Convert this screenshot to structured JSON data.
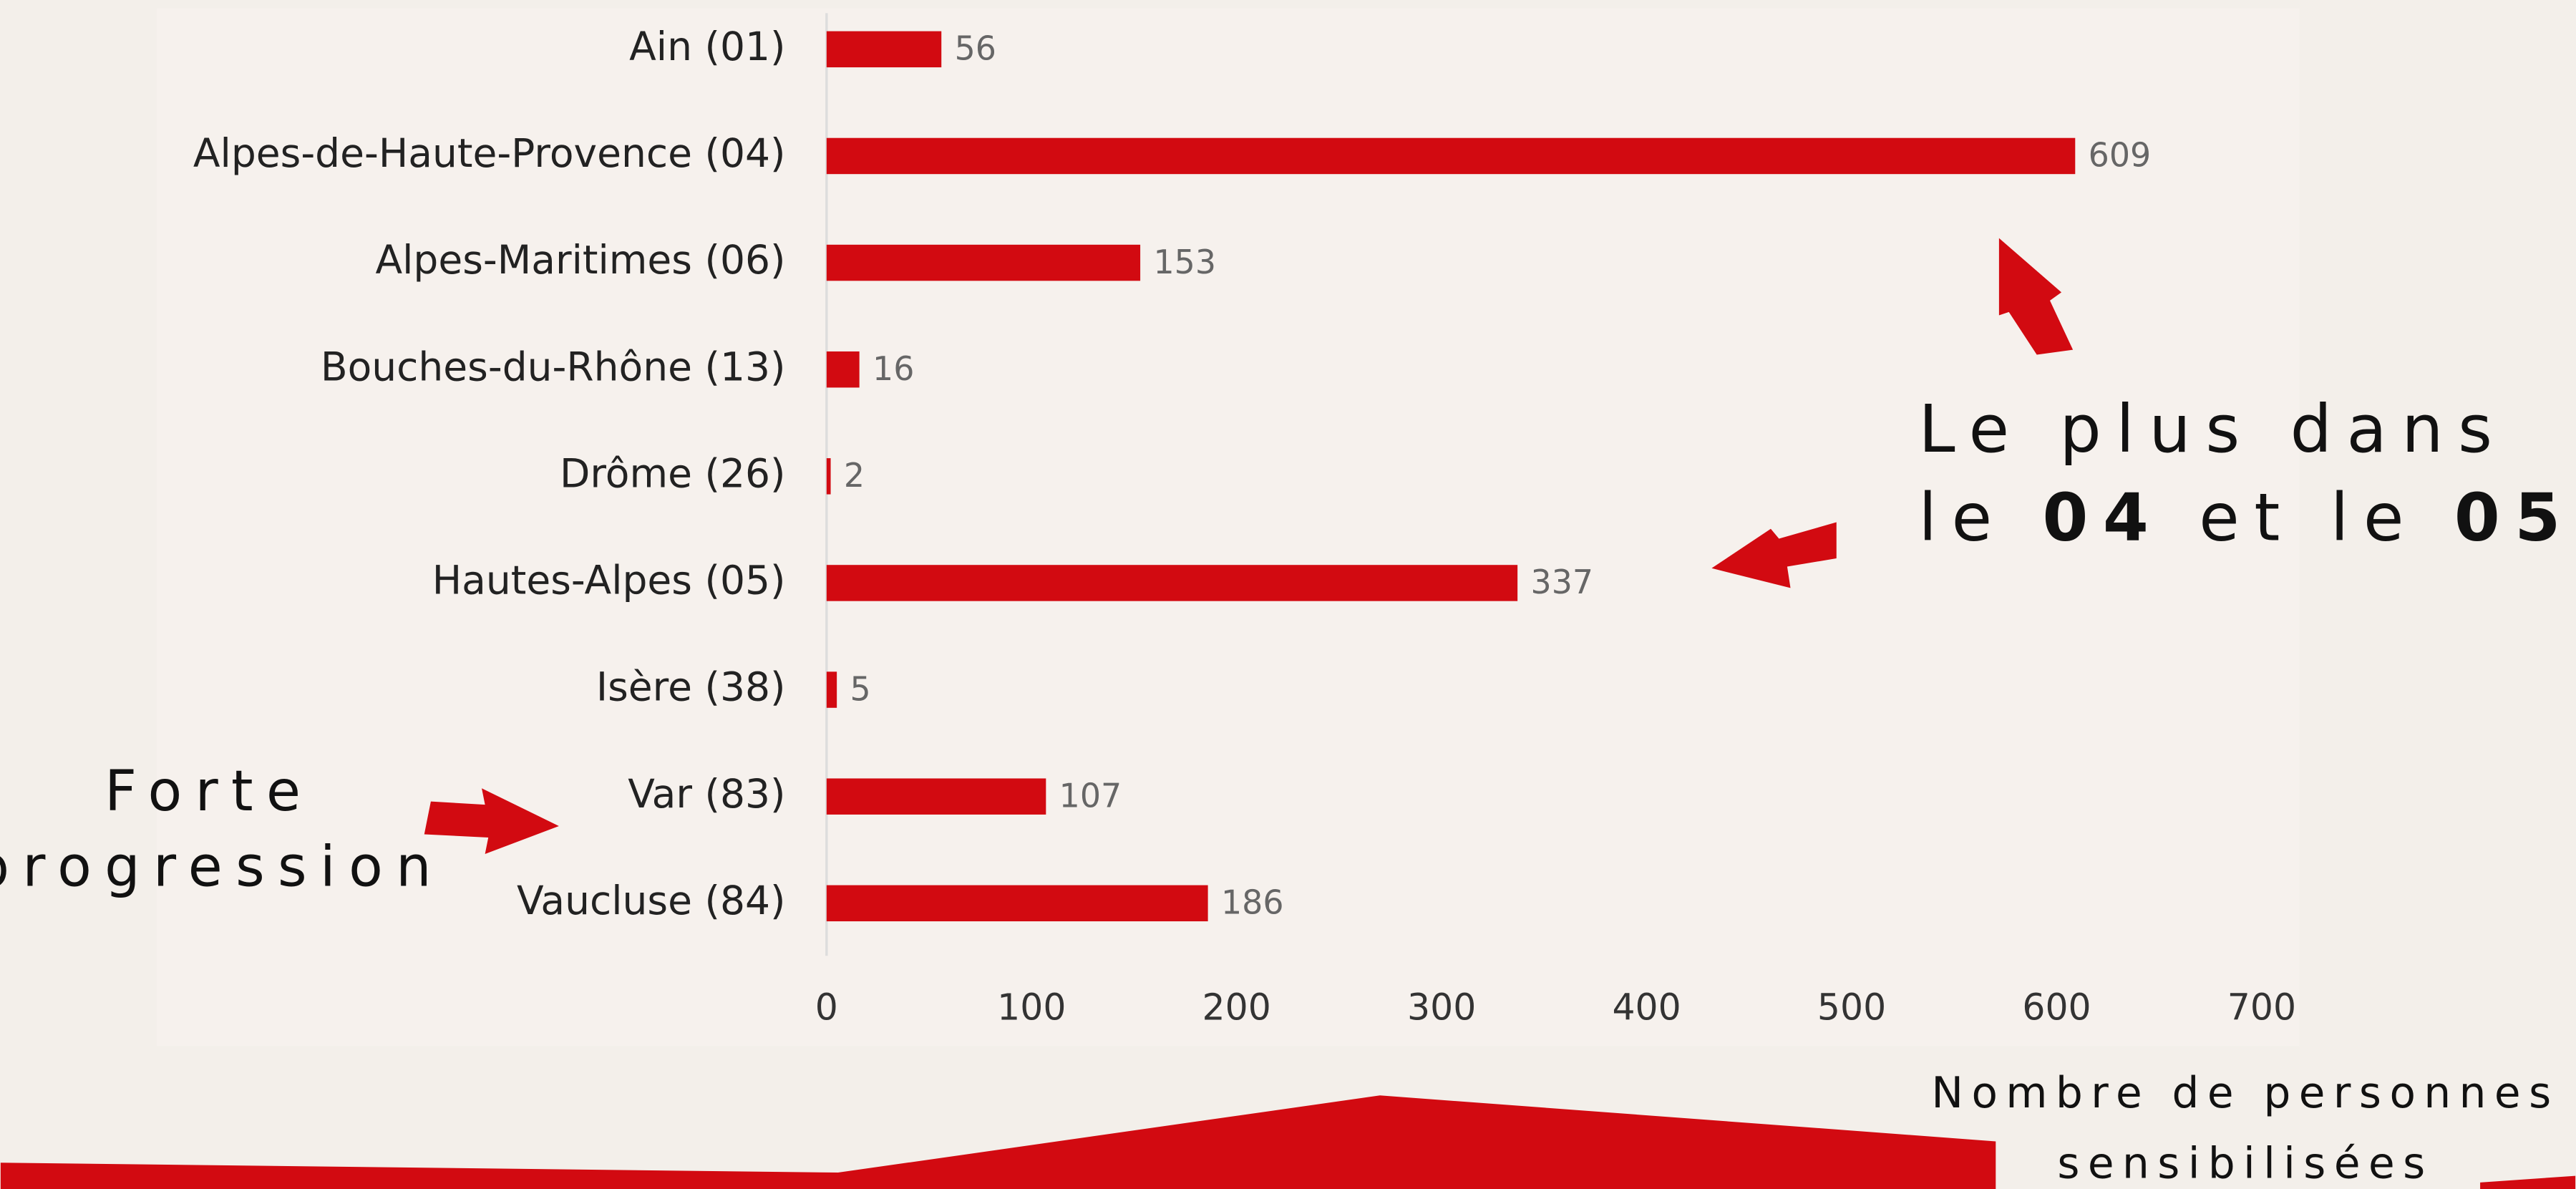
{
  "chart_data": {
    "type": "bar",
    "orientation": "horizontal",
    "categories": [
      "Ain (01)",
      "Alpes-de-Haute-Provence (04)",
      "Alpes-Maritimes (06)",
      "Bouches-du-Rhône (13)",
      "Drôme (26)",
      "Hautes-Alpes (05)",
      "Isère (38)",
      "Var (83)",
      "Vaucluse (84)"
    ],
    "values": [
      56,
      609,
      153,
      16,
      2,
      337,
      5,
      107,
      186
    ],
    "color": "#d20a11",
    "xlim": [
      0,
      700
    ],
    "xticks": [
      0,
      100,
      200,
      300,
      400,
      500,
      600,
      700
    ],
    "xlabel": [
      "Nombre de personnes",
      "sensibilisées"
    ],
    "annotation_left": [
      "Forte",
      "progression"
    ],
    "annotation_right": {
      "line1": "Le plus dans",
      "line2": [
        {
          "text": "le "
        },
        {
          "text": "04",
          "bold": true
        },
        {
          "text": " et le "
        },
        {
          "text": "05",
          "bold": true
        }
      ]
    }
  }
}
